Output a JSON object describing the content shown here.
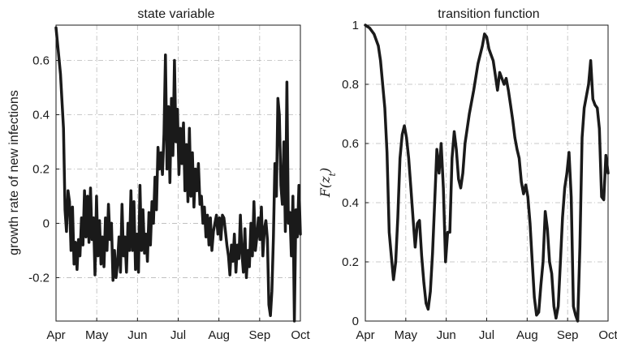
{
  "chart_data": [
    {
      "type": "line",
      "title": "state variable",
      "xlabel": "",
      "ylabel": "growth rate of new infections",
      "x_tick_labels": [
        "Apr",
        "May",
        "Jun",
        "Jul",
        "Aug",
        "Sep",
        "Oct"
      ],
      "y_ticks": [
        -0.2,
        0,
        0.2,
        0.4,
        0.6
      ],
      "y_tick_labels": [
        "-0.2",
        "0",
        "0.2",
        "0.4",
        "0.6"
      ],
      "ylim": [
        -0.36,
        0.73
      ],
      "grid": true,
      "line_color": "#1a1a1a",
      "series": [
        {
          "values": [
            [
              0,
              0.72
            ],
            [
              3,
              0.55
            ],
            [
              5,
              0.35
            ],
            [
              6,
              0.05
            ],
            [
              7,
              -0.03
            ],
            [
              8,
              0.12
            ],
            [
              9,
              0.08
            ],
            [
              10,
              -0.1
            ],
            [
              11,
              0.06
            ],
            [
              12,
              -0.15
            ],
            [
              13,
              -0.07
            ],
            [
              14,
              -0.17
            ],
            [
              15,
              -0.06
            ],
            [
              16,
              -0.12
            ],
            [
              17,
              0.02
            ],
            [
              18,
              -0.08
            ],
            [
              19,
              0.12
            ],
            [
              20,
              -0.05
            ],
            [
              21,
              0.1
            ],
            [
              22,
              -0.07
            ],
            [
              23,
              0.13
            ],
            [
              24,
              -0.06
            ],
            [
              25,
              0.02
            ],
            [
              26,
              -0.19
            ],
            [
              27,
              0.1
            ],
            [
              28,
              -0.12
            ],
            [
              29,
              0.01
            ],
            [
              30,
              -0.15
            ],
            [
              31,
              -0.05
            ],
            [
              32,
              -0.16
            ],
            [
              33,
              0.02
            ],
            [
              34,
              -0.1
            ],
            [
              35,
              0.07
            ],
            [
              36,
              -0.06
            ],
            [
              37,
              0.0
            ],
            [
              38,
              -0.21
            ],
            [
              39,
              -0.1
            ],
            [
              40,
              -0.2
            ],
            [
              41,
              -0.15
            ],
            [
              42,
              -0.05
            ],
            [
              43,
              -0.18
            ],
            [
              44,
              0.07
            ],
            [
              45,
              -0.12
            ],
            [
              46,
              -0.05
            ],
            [
              47,
              -0.18
            ],
            [
              48,
              0.0
            ],
            [
              49,
              -0.1
            ],
            [
              50,
              0.12
            ],
            [
              51,
              -0.1
            ],
            [
              52,
              0.08
            ],
            [
              53,
              -0.17
            ],
            [
              54,
              -0.04
            ],
            [
              55,
              -0.18
            ],
            [
              56,
              0.14
            ],
            [
              57,
              -0.1
            ],
            [
              58,
              0.05
            ],
            [
              59,
              -0.11
            ],
            [
              60,
              -0.04
            ],
            [
              61,
              -0.14
            ],
            [
              62,
              0.04
            ],
            [
              63,
              -0.08
            ],
            [
              64,
              0.08
            ],
            [
              65,
              0.0
            ],
            [
              66,
              0.17
            ],
            [
              67,
              0.05
            ],
            [
              68,
              0.28
            ],
            [
              69,
              0.2
            ],
            [
              70,
              0.26
            ],
            [
              71,
              0.18
            ],
            [
              72,
              0.33
            ],
            [
              73,
              0.62
            ],
            [
              74,
              0.2
            ],
            [
              75,
              0.43
            ],
            [
              76,
              0.15
            ],
            [
              77,
              0.46
            ],
            [
              78,
              0.25
            ],
            [
              79,
              0.6
            ],
            [
              80,
              0.3
            ],
            [
              81,
              0.42
            ],
            [
              82,
              0.18
            ],
            [
              83,
              0.35
            ],
            [
              84,
              0.22
            ],
            [
              85,
              0.37
            ],
            [
              86,
              0.12
            ],
            [
              87,
              0.29
            ],
            [
              88,
              0.08
            ],
            [
              89,
              0.35
            ],
            [
              90,
              0.1
            ],
            [
              91,
              0.26
            ],
            [
              92,
              0.06
            ],
            [
              93,
              0.2
            ],
            [
              94,
              0.12
            ],
            [
              95,
              0.22
            ],
            [
              96,
              0.07
            ],
            [
              97,
              0.1
            ],
            [
              98,
              0.0
            ],
            [
              99,
              0.06
            ],
            [
              100,
              -0.05
            ],
            [
              101,
              0.03
            ],
            [
              102,
              -0.08
            ],
            [
              103,
              0.02
            ],
            [
              104,
              -0.1
            ],
            [
              105,
              -0.03
            ],
            [
              106,
              0.0
            ],
            [
              107,
              0.03
            ],
            [
              108,
              -0.04
            ],
            [
              109,
              0.02
            ],
            [
              110,
              -0.06
            ],
            [
              111,
              0.03
            ],
            [
              112,
              0.02
            ],
            [
              113,
              -0.03
            ],
            [
              114,
              -0.08
            ],
            [
              115,
              -0.12
            ],
            [
              116,
              -0.19
            ],
            [
              117,
              -0.08
            ],
            [
              118,
              -0.14
            ],
            [
              119,
              -0.04
            ],
            [
              120,
              -0.18
            ],
            [
              121,
              -0.08
            ],
            [
              122,
              -0.13
            ],
            [
              123,
              0.03
            ],
            [
              124,
              -0.11
            ],
            [
              125,
              -0.18
            ],
            [
              126,
              -0.02
            ],
            [
              127,
              -0.2
            ],
            [
              128,
              -0.1
            ],
            [
              129,
              -0.16
            ],
            [
              130,
              0.0
            ],
            [
              131,
              -0.12
            ],
            [
              132,
              0.08
            ],
            [
              133,
              -0.1
            ],
            [
              134,
              -0.05
            ],
            [
              135,
              0.02
            ],
            [
              136,
              -0.06
            ],
            [
              137,
              0.06
            ],
            [
              138,
              -0.12
            ],
            [
              139,
              -0.02
            ],
            [
              140,
              0.01
            ],
            [
              141,
              -0.06
            ],
            [
              142,
              -0.3
            ],
            [
              143,
              -0.34
            ],
            [
              144,
              -0.25
            ],
            [
              145,
              -0.05
            ],
            [
              146,
              0.22
            ],
            [
              147,
              0.1
            ],
            [
              148,
              0.46
            ],
            [
              149,
              0.4
            ],
            [
              150,
              0.14
            ],
            [
              151,
              0.07
            ],
            [
              152,
              0.3
            ],
            [
              153,
              -0.03
            ],
            [
              154,
              0.52
            ],
            [
              155,
              0.0
            ],
            [
              156,
              0.04
            ],
            [
              157,
              -0.12
            ],
            [
              158,
              0.1
            ],
            [
              159,
              -0.36
            ],
            [
              160,
              0.05
            ],
            [
              161,
              -0.05
            ],
            [
              162,
              0.14
            ],
            [
              163,
              -0.04
            ]
          ]
        }
      ]
    },
    {
      "type": "line",
      "title": "transition function",
      "xlabel": "",
      "ylabel": "F(z_t)",
      "x_tick_labels": [
        "Apr",
        "May",
        "Jun",
        "Jul",
        "Aug",
        "Sep",
        "Oct"
      ],
      "y_ticks": [
        0,
        0.2,
        0.4,
        0.6,
        0.8,
        1
      ],
      "y_tick_labels": [
        "0",
        "0.2",
        "0.4",
        "0.6",
        "0.8",
        "1"
      ],
      "ylim": [
        0,
        1
      ],
      "grid": true,
      "line_color": "#1a1a1a",
      "series": [
        {
          "values": [
            [
              0,
              1.0
            ],
            [
              2,
              0.99
            ],
            [
              4,
              0.97
            ],
            [
              6,
              0.93
            ],
            [
              7,
              0.88
            ],
            [
              9,
              0.72
            ],
            [
              10,
              0.57
            ],
            [
              11,
              0.3
            ],
            [
              12,
              0.22
            ],
            [
              13,
              0.14
            ],
            [
              14,
              0.2
            ],
            [
              15,
              0.35
            ],
            [
              16,
              0.55
            ],
            [
              17,
              0.63
            ],
            [
              18,
              0.66
            ],
            [
              19,
              0.62
            ],
            [
              20,
              0.55
            ],
            [
              21,
              0.45
            ],
            [
              22,
              0.35
            ],
            [
              23,
              0.25
            ],
            [
              24,
              0.33
            ],
            [
              25,
              0.34
            ],
            [
              26,
              0.22
            ],
            [
              27,
              0.13
            ],
            [
              28,
              0.06
            ],
            [
              29,
              0.04
            ],
            [
              30,
              0.1
            ],
            [
              31,
              0.23
            ],
            [
              32,
              0.4
            ],
            [
              33,
              0.58
            ],
            [
              34,
              0.5
            ],
            [
              35,
              0.6
            ],
            [
              36,
              0.45
            ],
            [
              37,
              0.2
            ],
            [
              38,
              0.3
            ],
            [
              39,
              0.3
            ],
            [
              40,
              0.55
            ],
            [
              41,
              0.64
            ],
            [
              42,
              0.58
            ],
            [
              43,
              0.48
            ],
            [
              44,
              0.45
            ],
            [
              45,
              0.5
            ],
            [
              46,
              0.6
            ],
            [
              48,
              0.7
            ],
            [
              50,
              0.78
            ],
            [
              52,
              0.87
            ],
            [
              54,
              0.93
            ],
            [
              55,
              0.97
            ],
            [
              56,
              0.96
            ],
            [
              57,
              0.92
            ],
            [
              58,
              0.9
            ],
            [
              59,
              0.88
            ],
            [
              60,
              0.83
            ],
            [
              61,
              0.78
            ],
            [
              62,
              0.84
            ],
            [
              63,
              0.82
            ],
            [
              64,
              0.8
            ],
            [
              65,
              0.82
            ],
            [
              66,
              0.78
            ],
            [
              67,
              0.73
            ],
            [
              68,
              0.68
            ],
            [
              69,
              0.62
            ],
            [
              70,
              0.58
            ],
            [
              71,
              0.55
            ],
            [
              72,
              0.47
            ],
            [
              73,
              0.43
            ],
            [
              74,
              0.46
            ],
            [
              75,
              0.42
            ],
            [
              76,
              0.33
            ],
            [
              77,
              0.2
            ],
            [
              78,
              0.08
            ],
            [
              79,
              0.02
            ],
            [
              80,
              0.03
            ],
            [
              81,
              0.12
            ],
            [
              82,
              0.2
            ],
            [
              83,
              0.37
            ],
            [
              84,
              0.31
            ],
            [
              85,
              0.2
            ],
            [
              86,
              0.16
            ],
            [
              87,
              0.05
            ],
            [
              88,
              0.01
            ],
            [
              89,
              0.05
            ],
            [
              90,
              0.2
            ],
            [
              91,
              0.35
            ],
            [
              92,
              0.45
            ],
            [
              93,
              0.5
            ],
            [
              94,
              0.57
            ],
            [
              95,
              0.42
            ],
            [
              96,
              0.05
            ],
            [
              97,
              0.02
            ],
            [
              98,
              0.0
            ],
            [
              99,
              0.25
            ],
            [
              100,
              0.62
            ],
            [
              101,
              0.72
            ],
            [
              102,
              0.76
            ],
            [
              103,
              0.8
            ],
            [
              104,
              0.88
            ],
            [
              105,
              0.75
            ],
            [
              106,
              0.73
            ],
            [
              107,
              0.72
            ],
            [
              108,
              0.65
            ],
            [
              109,
              0.42
            ],
            [
              110,
              0.41
            ],
            [
              111,
              0.56
            ],
            [
              112,
              0.5
            ]
          ]
        }
      ]
    }
  ]
}
